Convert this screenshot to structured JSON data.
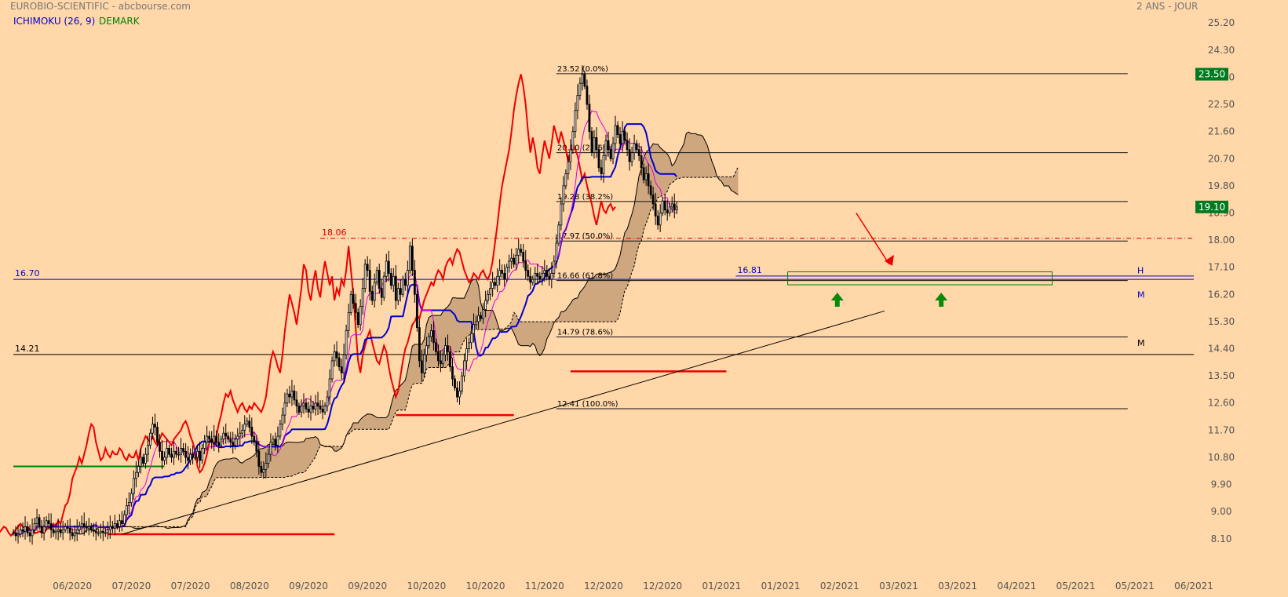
{
  "header": {
    "title": "EUROBIO-SCIENTIFIC - abcbourse.com",
    "period": "2 ANS - JOUR",
    "ichimoku_label": "ICHIMOKU (26, 9)",
    "demark_label": "DEMARK"
  },
  "colors": {
    "background": "#FFD7A8",
    "ichimoku": "#0000D0",
    "demark": "#008000",
    "lagging": "#EE0000",
    "tenkan": "#DD00DD",
    "cloud": "#C9A27A",
    "badge": "#007A1F"
  },
  "chart_data": {
    "type": "candlestick",
    "title": "EUROBIO-SCIENTIFIC - abcbourse.com",
    "ylim": [
      7.6,
      25.7
    ],
    "xlim": [
      0,
      500
    ],
    "y_ticks": [
      "25.20",
      "24.30",
      "23.40",
      "22.50",
      "21.60",
      "20.70",
      "19.80",
      "18.90",
      "18.00",
      "17.10",
      "16.20",
      "15.30",
      "14.40",
      "13.50",
      "12.60",
      "11.70",
      "10.80",
      "9.90",
      "9.00",
      "8.10"
    ],
    "x_ticks": [
      {
        "label": "06/2020",
        "x": 25
      },
      {
        "label": "07/2020",
        "x": 50
      },
      {
        "label": "07/2020",
        "x": 75
      },
      {
        "label": "08/2020",
        "x": 100
      },
      {
        "label": "09/2020",
        "x": 125
      },
      {
        "label": "09/2020",
        "x": 150
      },
      {
        "label": "10/2020",
        "x": 175
      },
      {
        "label": "10/2020",
        "x": 200
      },
      {
        "label": "11/2020",
        "x": 225
      },
      {
        "label": "12/2020",
        "x": 250
      },
      {
        "label": "12/2020",
        "x": 275
      },
      {
        "label": "01/2021",
        "x": 300
      },
      {
        "label": "01/2021",
        "x": 325
      },
      {
        "label": "02/2021",
        "x": 350
      },
      {
        "label": "03/2021",
        "x": 375
      },
      {
        "label": "03/2021",
        "x": 400
      },
      {
        "label": "04/2021",
        "x": 425
      },
      {
        "label": "05/2021",
        "x": 450
      },
      {
        "label": "05/2021",
        "x": 475
      },
      {
        "label": "06/2021",
        "x": 500
      }
    ],
    "price_badges": [
      {
        "label": "23.50",
        "value": 23.5
      },
      {
        "label": "19.10",
        "value": 19.1
      }
    ],
    "fibonacci": {
      "x_start": 230,
      "x_end": 472,
      "levels": [
        {
          "label": "23.52 (0.0%)",
          "value": 23.52
        },
        {
          "label": "20.90 (23.6%)",
          "value": 20.9
        },
        {
          "label": "19.28 (38.2%)",
          "value": 19.28
        },
        {
          "label": "17.97 (50.0%)",
          "value": 17.97
        },
        {
          "label": "16.66 (61.8%)",
          "value": 16.66
        },
        {
          "label": "14.79 (78.6%)",
          "value": 14.79
        },
        {
          "label": "12.41 (100.0%)",
          "value": 12.41
        }
      ]
    },
    "horizontal_lines": [
      {
        "label": "16.70",
        "value": 16.7,
        "x_start": 0,
        "x_end": 500,
        "style": "blue"
      },
      {
        "label": "14.21",
        "value": 14.21,
        "x_start": 0,
        "x_end": 500,
        "style": "black"
      },
      {
        "label": "18.06",
        "value": 18.06,
        "x_start": 130,
        "x_end": 500,
        "style": "red-dashdot"
      },
      {
        "label": "16.81",
        "value": 16.81,
        "x_start": 306,
        "x_end": 500,
        "style": "blue"
      },
      {
        "label": "",
        "value": 8.25,
        "x_start": 40,
        "x_end": 136,
        "style": "red"
      },
      {
        "label": "",
        "value": 12.2,
        "x_start": 162,
        "x_end": 212,
        "style": "red"
      },
      {
        "label": "",
        "value": 13.65,
        "x_start": 236,
        "x_end": 302,
        "style": "red"
      },
      {
        "label": "",
        "value": 10.5,
        "x_start": 0,
        "x_end": 64,
        "style": "green"
      }
    ],
    "side_labels": [
      {
        "label": "H",
        "value": 17.0
      },
      {
        "label": "M",
        "value": 16.2
      },
      {
        "label": "M",
        "value": 14.6
      }
    ],
    "trendline": {
      "x1": 46,
      "y1": 8.25,
      "x2": 369,
      "y2": 15.65
    },
    "support_zone": {
      "x1": 328,
      "x2": 440,
      "y_top": 16.95,
      "y_bottom": 16.52
    },
    "arrows": {
      "up": [
        {
          "x": 349,
          "y": 16.0
        },
        {
          "x": 393,
          "y": 16.0
        }
      ],
      "down": {
        "x1": 357,
        "y1": 18.9,
        "x2": 371,
        "y2": 17.2
      }
    },
    "closes": [
      8.3,
      8.2,
      8.25,
      8.4,
      8.35,
      8.5,
      8.3,
      8.2,
      8.4,
      8.6,
      8.8,
      8.5,
      8.3,
      8.5,
      8.7,
      8.6,
      8.4,
      8.3,
      8.35,
      8.4,
      8.3,
      8.4,
      8.5,
      8.45,
      8.3,
      8.2,
      8.3,
      8.4,
      8.5,
      8.6,
      8.5,
      8.45,
      8.5,
      8.4,
      8.35,
      8.3,
      8.3,
      8.35,
      8.3,
      8.3,
      8.4,
      8.5,
      8.45,
      8.6,
      8.5,
      8.7,
      8.6,
      8.9,
      9.2,
      9.3,
      9.6,
      10.1,
      10.3,
      10.5,
      10.8,
      10.6,
      10.9,
      11.2,
      11.6,
      11.9,
      11.8,
      11.3,
      11.0,
      10.7,
      10.8,
      11.1,
      10.9,
      10.8,
      11.0,
      10.9,
      10.9,
      11.1,
      11.0,
      10.8,
      10.7,
      10.9,
      10.8,
      10.8,
      11.0,
      10.7,
      11.1,
      11.3,
      11.5,
      11.4,
      11.3,
      11.5,
      11.3,
      11.2,
      11.4,
      11.6,
      11.5,
      11.4,
      11.3,
      11.2,
      11.4,
      11.5,
      11.6,
      11.7,
      11.9,
      12.0,
      11.8,
      11.5,
      11.3,
      11.0,
      10.5,
      10.3,
      10.4,
      10.6,
      10.9,
      11.3,
      11.4,
      11.2,
      11.5,
      11.9,
      12.2,
      12.6,
      12.9,
      12.8,
      13.0,
      12.7,
      12.5,
      12.3,
      12.5,
      12.6,
      12.4,
      12.3,
      12.5,
      12.4,
      12.6,
      12.5,
      12.4,
      12.3,
      12.5,
      12.8,
      13.4,
      14.0,
      14.3,
      14.1,
      13.8,
      13.6,
      14.2,
      15.0,
      15.6,
      16.2,
      15.9,
      15.6,
      15.2,
      15.8,
      16.4,
      17.2,
      17.0,
      16.3,
      16.0,
      16.6,
      17.0,
      16.4,
      16.1,
      16.8,
      17.3,
      16.9,
      16.5,
      16.8,
      16.0,
      16.4,
      16.2,
      16.7,
      16.5,
      17.0,
      17.8,
      17.0,
      16.2,
      15.1,
      14.0,
      13.6,
      14.2,
      14.5,
      14.8,
      15.0,
      14.6,
      14.3,
      14.0,
      13.9,
      14.2,
      14.5,
      14.3,
      13.8,
      13.4,
      13.1,
      12.8,
      13.0,
      13.5,
      14.0,
      14.4,
      14.6,
      14.9,
      15.2,
      15.3,
      15.5,
      15.4,
      15.7,
      16.0,
      16.2,
      16.4,
      16.6,
      16.5,
      16.8,
      17.0,
      16.9,
      16.7,
      17.1,
      17.3,
      17.4,
      17.2,
      17.5,
      17.7,
      17.6,
      17.3,
      17.0,
      16.8,
      16.6,
      16.7,
      16.9,
      16.8,
      16.7,
      16.9,
      17.0,
      16.8,
      16.7,
      16.9,
      17.3,
      17.9,
      18.5,
      19.2,
      19.8,
      20.2,
      20.6,
      21.0,
      21.6,
      22.3,
      22.8,
      23.2,
      23.5,
      23.1,
      22.5,
      21.6,
      20.9,
      21.4,
      21.0,
      20.4,
      20.2,
      20.8,
      21.3,
      21.0,
      20.7,
      21.2,
      21.8,
      21.5,
      21.2,
      21.6,
      21.3,
      21.0,
      20.6,
      20.9,
      21.2,
      21.0,
      20.8,
      20.4,
      20.0,
      20.2,
      19.8,
      19.5,
      19.2,
      18.8,
      18.5,
      18.9,
      19.3,
      19.0,
      18.9,
      19.1,
      19.2,
      19.0,
      19.1
    ]
  }
}
